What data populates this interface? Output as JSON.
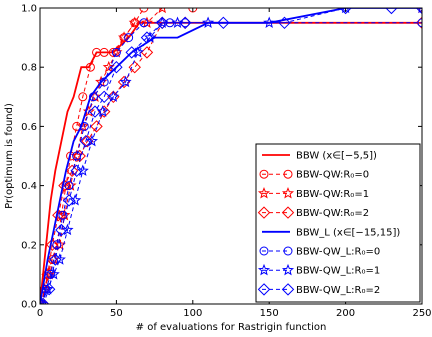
{
  "chart_data": {
    "type": "line",
    "title": "",
    "xlabel": "# of evaluations for Rastrigin function",
    "ylabel": "Pr(optimum is found)",
    "xlim": [
      0,
      250
    ],
    "ylim": [
      0.0,
      1.0
    ],
    "xticks": [
      "0",
      "50",
      "100",
      "150",
      "200",
      "250"
    ],
    "yticks": [
      "0.0",
      "0.2",
      "0.4",
      "0.6",
      "0.8",
      "1.0"
    ],
    "grid": false,
    "legend_position": "lower-right",
    "series": [
      {
        "name": "BBW (x∈[−5,5])",
        "color": "#ff0000",
        "linestyle": "solid",
        "marker": "none",
        "x": [
          0,
          4,
          7,
          10,
          14,
          18,
          22,
          27,
          32,
          37,
          48,
          58,
          65,
          75,
          250
        ],
        "y": [
          0.0,
          0.2,
          0.35,
          0.45,
          0.55,
          0.65,
          0.7,
          0.8,
          0.8,
          0.85,
          0.85,
          0.9,
          0.95,
          0.95,
          0.95
        ]
      },
      {
        "name": "BBW-QW:R₀=0",
        "color": "#ff0000",
        "linestyle": "dashed",
        "marker": "circle",
        "x": [
          1,
          3,
          5,
          8,
          11,
          14,
          17,
          20,
          24,
          28,
          33,
          37,
          42,
          48,
          55,
          62,
          68,
          100,
          250
        ],
        "y": [
          0.0,
          0.05,
          0.1,
          0.15,
          0.2,
          0.3,
          0.4,
          0.5,
          0.6,
          0.7,
          0.8,
          0.85,
          0.85,
          0.85,
          0.9,
          0.95,
          1.0,
          1.0,
          1.0
        ]
      },
      {
        "name": "BBW-QW:R₀=1",
        "color": "#ff0000",
        "linestyle": "dashed",
        "marker": "star",
        "x": [
          1,
          3,
          6,
          9,
          13,
          16,
          20,
          24,
          28,
          32,
          36,
          40,
          45,
          50,
          55,
          62,
          70,
          80,
          250
        ],
        "y": [
          0.0,
          0.05,
          0.1,
          0.15,
          0.2,
          0.3,
          0.4,
          0.5,
          0.6,
          0.65,
          0.7,
          0.75,
          0.8,
          0.85,
          0.9,
          0.95,
          0.95,
          1.0,
          1.0
        ]
      },
      {
        "name": "BBW-QW:R₀=2",
        "color": "#ff0000",
        "linestyle": "dashed",
        "marker": "diamond",
        "x": [
          2,
          5,
          8,
          12,
          16,
          21,
          26,
          31,
          37,
          42,
          48,
          55,
          62,
          70,
          80,
          95,
          250
        ],
        "y": [
          0.0,
          0.1,
          0.2,
          0.3,
          0.4,
          0.45,
          0.5,
          0.55,
          0.6,
          0.65,
          0.7,
          0.75,
          0.8,
          0.85,
          0.95,
          0.95,
          0.95
        ]
      },
      {
        "name": "BBW_L (x∈[−15,15])",
        "color": "#0000ff",
        "linestyle": "solid",
        "marker": "none",
        "x": [
          0,
          5,
          9,
          13,
          17,
          22,
          27,
          33,
          40,
          50,
          60,
          75,
          90,
          110,
          150,
          200,
          250
        ],
        "y": [
          0.0,
          0.15,
          0.25,
          0.35,
          0.45,
          0.55,
          0.6,
          0.7,
          0.75,
          0.8,
          0.85,
          0.9,
          0.9,
          0.95,
          0.95,
          1.0,
          1.0
        ]
      },
      {
        "name": "BBW-QW_L:R₀=0",
        "color": "#0000ff",
        "linestyle": "dashed",
        "marker": "circle",
        "x": [
          1,
          4,
          7,
          11,
          15,
          19,
          24,
          29,
          35,
          42,
          50,
          58,
          68,
          85,
          95,
          250
        ],
        "y": [
          0.0,
          0.05,
          0.1,
          0.2,
          0.3,
          0.4,
          0.5,
          0.6,
          0.7,
          0.75,
          0.85,
          0.9,
          0.95,
          0.95,
          0.95,
          0.95
        ]
      },
      {
        "name": "BBW-QW_L:R₀=1",
        "color": "#0000ff",
        "linestyle": "dashed",
        "marker": "star",
        "x": [
          1,
          5,
          9,
          13,
          18,
          23,
          28,
          34,
          41,
          48,
          56,
          64,
          72,
          80,
          90,
          110,
          150,
          200,
          250
        ],
        "y": [
          0.0,
          0.05,
          0.1,
          0.15,
          0.25,
          0.35,
          0.45,
          0.55,
          0.65,
          0.7,
          0.75,
          0.85,
          0.9,
          0.95,
          0.95,
          0.95,
          0.95,
          1.0,
          1.0
        ]
      },
      {
        "name": "BBW-QW_L:R₀=2",
        "color": "#0000ff",
        "linestyle": "dashed",
        "marker": "diamond",
        "x": [
          2,
          6,
          10,
          14,
          19,
          24,
          30,
          36,
          42,
          50,
          60,
          70,
          80,
          95,
          120,
          160,
          200,
          230,
          250
        ],
        "y": [
          0.0,
          0.05,
          0.15,
          0.25,
          0.35,
          0.45,
          0.55,
          0.65,
          0.7,
          0.8,
          0.85,
          0.9,
          0.95,
          0.95,
          0.95,
          0.95,
          1.0,
          1.0,
          1.0
        ]
      }
    ]
  }
}
